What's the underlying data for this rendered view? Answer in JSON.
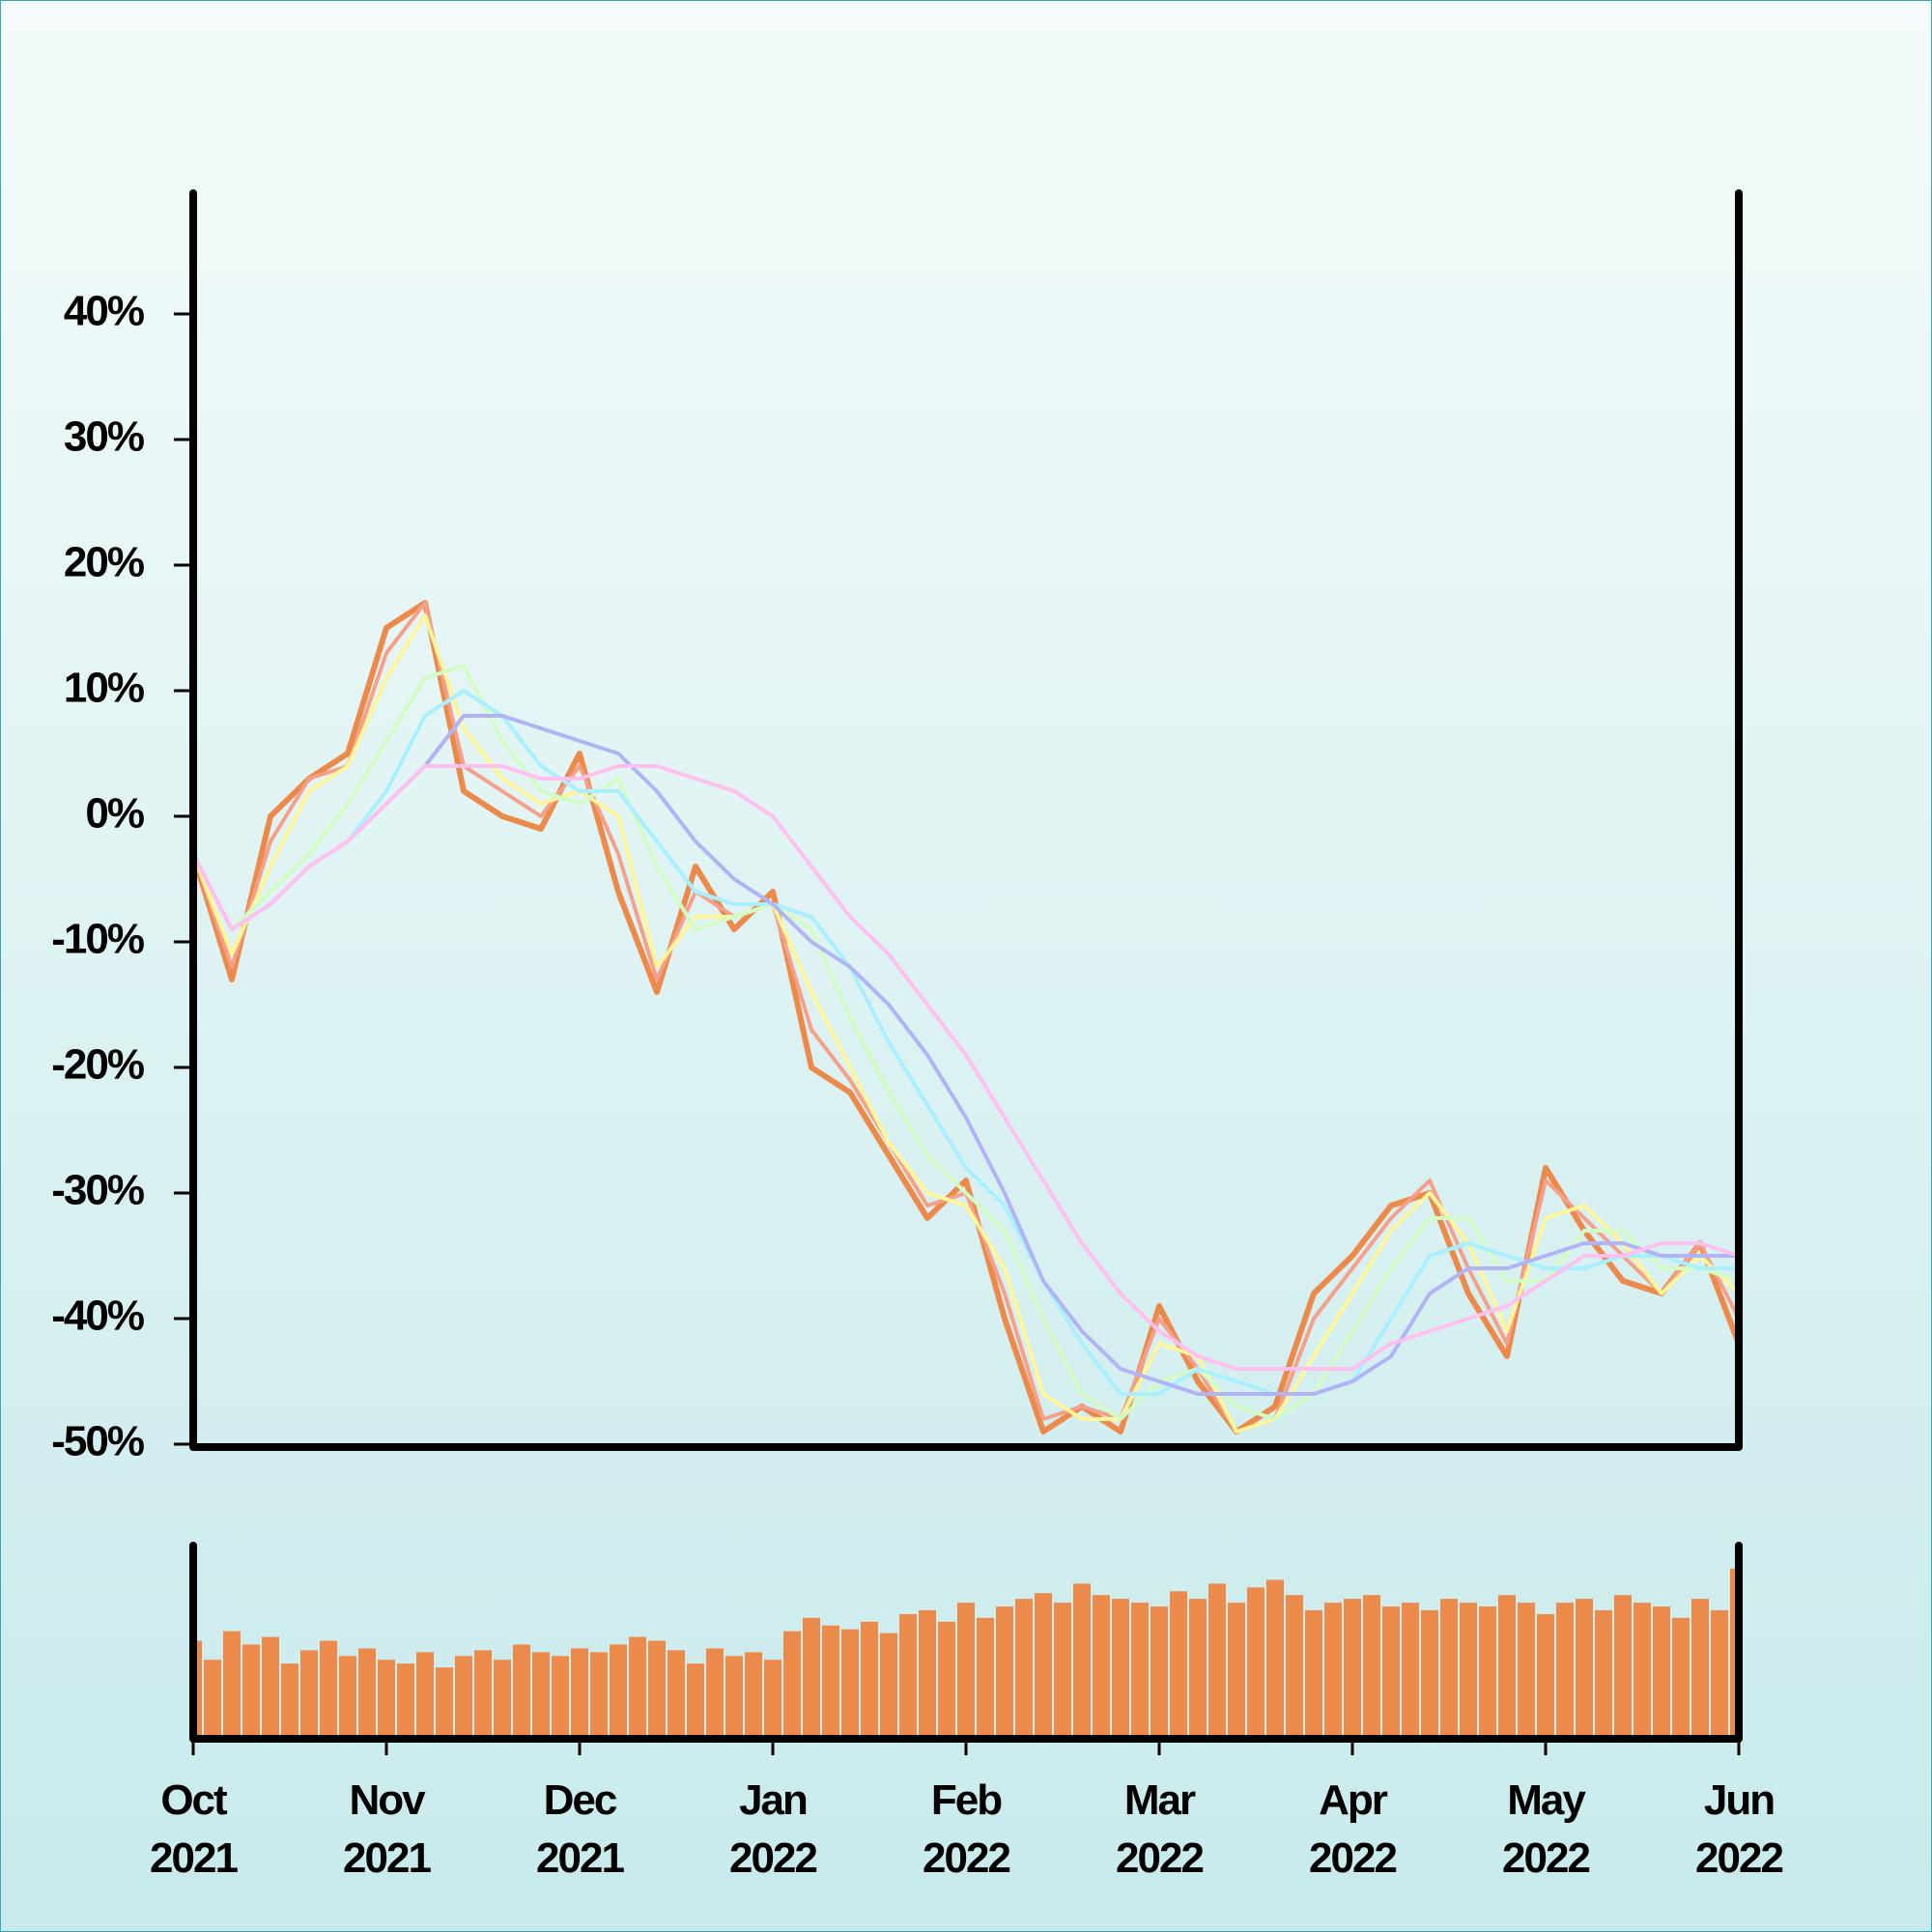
{
  "chart_data": [
    {
      "type": "line",
      "x": [
        0,
        0.2,
        0.4,
        0.6,
        0.8,
        1,
        1.2,
        1.4,
        1.6,
        1.8,
        2,
        2.2,
        2.4,
        2.6,
        2.8,
        3,
        3.2,
        3.4,
        3.6,
        3.8,
        4,
        4.2,
        4.4,
        4.6,
        4.8,
        5,
        5.2,
        5.4,
        5.6,
        5.8,
        6,
        6.2,
        6.4,
        6.6,
        6.8,
        7,
        7.2,
        7.4,
        7.6,
        7.8,
        8
      ],
      "series": [
        {
          "color": "#ec8a4c",
          "values": [
            -3,
            -13,
            0,
            3,
            5,
            15,
            17,
            2,
            0,
            -1,
            5,
            -6,
            -14,
            -4,
            -9,
            -6,
            -20,
            -22,
            -27,
            -32,
            -29,
            -40,
            -49,
            -47,
            -49,
            -39,
            -45,
            -49,
            -47,
            -38,
            -35,
            -31,
            -30,
            -38,
            -43,
            -28,
            -33,
            -37,
            -38,
            -34,
            -42
          ]
        },
        {
          "color": "#f4a08a",
          "values": [
            -3,
            -12,
            -2,
            3,
            4,
            13,
            17,
            4,
            2,
            0,
            4,
            -3,
            -13,
            -6,
            -8,
            -7,
            -17,
            -21,
            -26,
            -31,
            -30,
            -38,
            -48,
            -47,
            -48,
            -40,
            -44,
            -49,
            -48,
            -40,
            -36,
            -32,
            -29,
            -36,
            -42,
            -29,
            -32,
            -35,
            -38,
            -34,
            -40
          ]
        },
        {
          "color": "#fff69a",
          "values": [
            -3,
            -11,
            -4,
            2,
            4,
            11,
            16,
            7,
            3,
            1,
            2,
            0,
            -12,
            -8,
            -8,
            -7,
            -14,
            -20,
            -26,
            -30,
            -31,
            -36,
            -46,
            -48,
            -48,
            -42,
            -43,
            -49,
            -48,
            -43,
            -38,
            -33,
            -30,
            -34,
            -41,
            -32,
            -31,
            -34,
            -38,
            -35,
            -38
          ]
        },
        {
          "color": "#d2fcc4",
          "values": [
            -3,
            -9,
            -6,
            -3,
            1,
            6,
            11,
            12,
            6,
            2,
            1,
            3,
            -4,
            -9,
            -8,
            -7,
            -9,
            -16,
            -22,
            -27,
            -30,
            -33,
            -40,
            -46,
            -48,
            -45,
            -44,
            -47,
            -48,
            -46,
            -41,
            -36,
            -32,
            -32,
            -37,
            -37,
            -33,
            -33,
            -36,
            -36,
            -37
          ]
        },
        {
          "color": "#a8f0ff",
          "values": [
            -3,
            -9,
            -7,
            -4,
            -2,
            2,
            8,
            10,
            8,
            4,
            2,
            2,
            -2,
            -6,
            -7,
            -7,
            -8,
            -12,
            -18,
            -23,
            -28,
            -31,
            -37,
            -42,
            -46,
            -46,
            -44,
            -45,
            -46,
            -46,
            -45,
            -40,
            -35,
            -34,
            -35,
            -36,
            -36,
            -35,
            -35,
            -36,
            -36
          ]
        },
        {
          "color": "#b0b4f4",
          "values": [
            -3,
            -9,
            -7,
            -4,
            -2,
            1,
            4,
            8,
            8,
            7,
            6,
            5,
            2,
            -2,
            -5,
            -7,
            -10,
            -12,
            -15,
            -19,
            -24,
            -30,
            -37,
            -41,
            -44,
            -45,
            -46,
            -46,
            -46,
            -46,
            -45,
            -43,
            -38,
            -36,
            -36,
            -35,
            -34,
            -34,
            -35,
            -35,
            -35
          ]
        },
        {
          "color": "#ffc0f0",
          "values": [
            -3,
            -9,
            -7,
            -4,
            -2,
            1,
            4,
            4,
            4,
            3,
            3,
            4,
            4,
            3,
            2,
            0,
            -4,
            -8,
            -11,
            -15,
            -19,
            -24,
            -29,
            -34,
            -38,
            -41,
            -43,
            -44,
            -44,
            -44,
            -44,
            -42,
            -41,
            -40,
            -39,
            -37,
            -35,
            -35,
            -34,
            -34,
            -35
          ]
        }
      ],
      "xlim": [
        0,
        8
      ],
      "ylim": [
        -50,
        50
      ],
      "yticks": [
        {
          "value": -50,
          "label": "-50%"
        },
        {
          "value": -40,
          "label": "-40%"
        },
        {
          "value": -30,
          "label": "-30%"
        },
        {
          "value": -20,
          "label": "-20%"
        },
        {
          "value": -10,
          "label": "-10%"
        },
        {
          "value": 0,
          "label": "0%"
        },
        {
          "value": 10,
          "label": "10%"
        },
        {
          "value": 20,
          "label": "20%"
        },
        {
          "value": 30,
          "label": "30%"
        },
        {
          "value": 40,
          "label": "40%"
        }
      ]
    },
    {
      "type": "bar",
      "color": "#ec8a4c",
      "x": [
        0,
        0.1,
        0.2,
        0.3,
        0.4,
        0.5,
        0.6,
        0.7,
        0.8,
        0.9,
        1,
        1.1,
        1.2,
        1.3,
        1.4,
        1.5,
        1.6,
        1.7,
        1.8,
        1.9,
        2,
        2.1,
        2.2,
        2.3,
        2.4,
        2.5,
        2.6,
        2.7,
        2.8,
        2.9,
        3,
        3.1,
        3.2,
        3.3,
        3.4,
        3.5,
        3.6,
        3.7,
        3.8,
        3.9,
        4,
        4.1,
        4.2,
        4.3,
        4.4,
        4.5,
        4.6,
        4.7,
        4.8,
        4.9,
        5,
        5.1,
        5.2,
        5.3,
        5.4,
        5.5,
        5.6,
        5.7,
        5.8,
        5.9,
        6,
        6.1,
        6.2,
        6.3,
        6.4,
        6.5,
        6.6,
        6.7,
        6.8,
        6.9,
        7,
        7.1,
        7.2,
        7.3,
        7.4,
        7.5,
        7.6,
        7.7,
        7.8,
        7.9,
        8
      ],
      "values": [
        50,
        40,
        55,
        48,
        52,
        38,
        45,
        50,
        42,
        46,
        40,
        38,
        44,
        36,
        42,
        45,
        40,
        48,
        44,
        42,
        46,
        44,
        48,
        52,
        50,
        45,
        38,
        46,
        42,
        44,
        40,
        55,
        62,
        58,
        56,
        60,
        54,
        64,
        66,
        60,
        70,
        62,
        68,
        72,
        75,
        70,
        80,
        74,
        72,
        70,
        68,
        76,
        72,
        80,
        70,
        78,
        82,
        74,
        66,
        70,
        72,
        74,
        68,
        70,
        66,
        72,
        70,
        68,
        74,
        70,
        64,
        70,
        72,
        66,
        74,
        70,
        68,
        62,
        72,
        66,
        88
      ],
      "xlim": [
        0,
        8
      ],
      "ylim": [
        0,
        100
      ],
      "xticks": [
        {
          "value": 0,
          "label": "Oct 2021"
        },
        {
          "value": 1,
          "label": "Nov 2021"
        },
        {
          "value": 2,
          "label": "Dec 2021"
        },
        {
          "value": 3,
          "label": "Jan 2022"
        },
        {
          "value": 4,
          "label": "Feb 2022"
        },
        {
          "value": 5,
          "label": "Mar 2022"
        },
        {
          "value": 6,
          "label": "Apr 2022"
        },
        {
          "value": 7,
          "label": "May 2022"
        },
        {
          "value": 8,
          "label": "Jun 2022"
        }
      ]
    }
  ]
}
